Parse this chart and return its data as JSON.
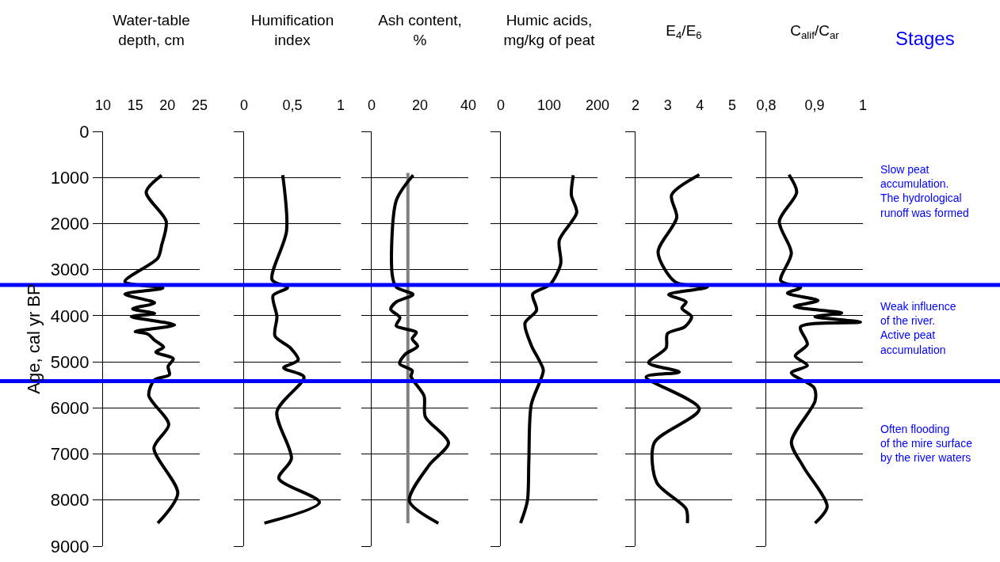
{
  "chart_data": [
    {
      "type": "line",
      "title": "Water-table\ndepth, cm",
      "ylabel": "Age, cal yr BP",
      "xlim": [
        10,
        25
      ],
      "xticks": [
        10,
        15,
        20,
        25
      ],
      "ylim": [
        9000,
        0
      ],
      "yticks": [
        0,
        1000,
        2000,
        3000,
        4000,
        5000,
        6000,
        7000,
        8000,
        9000
      ],
      "grid": "y",
      "marker": "none",
      "series": [
        {
          "color": "#000000",
          "x": [
            19.1,
            16.7,
            19.8,
            19.1,
            18.5,
            13.4,
            19.3,
            13.4,
            18.0,
            14.6,
            18.0,
            14.4,
            21.1,
            15.0,
            17.0,
            18.0,
            19.4,
            18.2,
            20.9,
            20.1,
            20.3,
            18.0,
            17.1,
            20.2,
            17.9,
            21.6,
            18.5
          ],
          "values": [
            950,
            1320,
            1950,
            2470,
            2750,
            3260,
            3400,
            3530,
            3720,
            3850,
            3950,
            4020,
            4200,
            4340,
            4400,
            4530,
            4680,
            4790,
            4930,
            5100,
            5280,
            5390,
            5730,
            6360,
            6870,
            7850,
            8500
          ]
        }
      ],
      "ref_lines": [
        {
          "axis": "y",
          "value": 3330,
          "color": "#0000ff"
        },
        {
          "axis": "y",
          "value": 5420,
          "color": "#0000ff"
        }
      ]
    },
    {
      "type": "line",
      "title": "Humification\nindex",
      "xlim": [
        0,
        1
      ],
      "xticks": [
        0,
        {
          "value": 0.5,
          "label": "0,5"
        },
        1
      ],
      "ylim": [
        9000,
        0
      ],
      "yticks": [
        0,
        1000,
        2000,
        3000,
        4000,
        5000,
        6000,
        7000,
        8000,
        9000
      ],
      "tick_labels": "x",
      "grid": "y",
      "marker": "none",
      "series": [
        {
          "color": "#000000",
          "x": [
            0.4,
            0.44,
            0.29,
            0.45,
            0.3,
            0.34,
            0.32,
            0.48,
            0.56,
            0.41,
            0.62,
            0.34,
            0.49,
            0.36,
            0.78,
            0.21
          ],
          "values": [
            950,
            2160,
            3220,
            3390,
            3560,
            4020,
            4440,
            4700,
            4960,
            5130,
            5330,
            6080,
            7100,
            7530,
            8050,
            8500
          ]
        }
      ],
      "ref_lines": [
        {
          "axis": "y",
          "value": 3330,
          "color": "#0000ff"
        },
        {
          "axis": "y",
          "value": 5420,
          "color": "#0000ff"
        }
      ]
    },
    {
      "type": "line",
      "title": "Ash content,\n%",
      "xlim": [
        0,
        40
      ],
      "xticks": [
        0,
        20,
        40
      ],
      "ylim": [
        9000,
        0
      ],
      "yticks": [
        0,
        1000,
        2000,
        3000,
        4000,
        5000,
        6000,
        7000,
        8000,
        9000
      ],
      "tick_labels": "x",
      "grid": "y",
      "marker": "none",
      "series": [
        {
          "color": "#808080",
          "x": [
            15,
            15
          ],
          "values": [
            900,
            8500
          ]
        },
        {
          "color": "#000000",
          "x": [
            17.2,
            10.2,
            8.5,
            10.2,
            17.1,
            10.2,
            7.9,
            11.7,
            10.2,
            18.5,
            16.8,
            19.0,
            13.8,
            11.6,
            16.8,
            16.3,
            21.7,
            22.2,
            31.8,
            23.8,
            15.6,
            27.6
          ],
          "values": [
            950,
            1500,
            3100,
            3380,
            3540,
            3700,
            3860,
            4040,
            4220,
            4360,
            4500,
            4660,
            4840,
            5040,
            5190,
            5320,
            5740,
            6190,
            6760,
            7240,
            8020,
            8500
          ]
        }
      ],
      "ref_lines": [
        {
          "axis": "y",
          "value": 3330,
          "color": "#0000ff"
        },
        {
          "axis": "y",
          "value": 5420,
          "color": "#0000ff"
        }
      ]
    },
    {
      "type": "line",
      "title": "Humic acids,\nmg/kg of peat",
      "xlim": [
        0,
        200
      ],
      "xticks": [
        0,
        100,
        200
      ],
      "ylim": [
        9000,
        0
      ],
      "yticks": [
        0,
        1000,
        2000,
        3000,
        4000,
        5000,
        6000,
        7000,
        8000,
        9000
      ],
      "tick_labels": "x",
      "grid": "y",
      "marker": "none",
      "series": [
        {
          "color": "#000000",
          "x": [
            150,
            146,
            157,
            121,
            124,
            102,
            66,
            74,
            50,
            63,
            80,
            88,
            63,
            58,
            55,
            41
          ],
          "values": [
            950,
            1380,
            1760,
            2360,
            2870,
            3320,
            3530,
            3880,
            4160,
            4640,
            4980,
            5190,
            5930,
            7160,
            8020,
            8500
          ]
        }
      ],
      "ref_lines": [
        {
          "axis": "y",
          "value": 3330,
          "color": "#0000ff"
        },
        {
          "axis": "y",
          "value": 5420,
          "color": "#0000ff"
        }
      ]
    },
    {
      "type": "line",
      "title": "E$_{4}$/E$_{6}$",
      "xlim": [
        2,
        5
      ],
      "xticks": [
        2,
        3,
        4,
        5
      ],
      "ylim": [
        9000,
        0
      ],
      "yticks": [
        0,
        1000,
        2000,
        3000,
        4000,
        5000,
        6000,
        7000,
        8000,
        9000
      ],
      "tick_labels": "x",
      "grid": "y",
      "marker": "none",
      "series": [
        {
          "color": "#000000",
          "x": [
            3.98,
            3.12,
            3.28,
            2.7,
            3.24,
            4.23,
            3.03,
            3.57,
            3.44,
            3.74,
            3.53,
            2.99,
            2.95,
            2.41,
            3.36,
            2.33,
            3.98,
            2.58,
            2.66,
            3.57,
            3.61
          ],
          "values": [
            940,
            1380,
            1870,
            2620,
            3270,
            3380,
            3540,
            3700,
            3840,
            4020,
            4240,
            4390,
            4700,
            5020,
            5220,
            5330,
            6020,
            6760,
            7620,
            8190,
            8500
          ]
        }
      ],
      "ref_lines": [
        {
          "axis": "y",
          "value": 3330,
          "color": "#0000ff"
        },
        {
          "axis": "y",
          "value": 5420,
          "color": "#0000ff"
        }
      ]
    },
    {
      "type": "line",
      "title": "C$_{alif}$/C$_{ar}$",
      "xlim": [
        0.8,
        1
      ],
      "xticks": [
        {
          "value": 0.8,
          "label": "0,8"
        },
        {
          "value": 0.9,
          "label": "0,9"
        },
        1
      ],
      "ylim": [
        9000,
        0
      ],
      "yticks": [
        0,
        1000,
        2000,
        3000,
        4000,
        5000,
        6000,
        7000,
        8000,
        9000
      ],
      "tick_labels": "x",
      "grid": "y",
      "marker": "none",
      "series": [
        {
          "color": "#000000",
          "x": [
            0.847,
            0.863,
            0.827,
            0.852,
            0.83,
            0.871,
            0.844,
            0.907,
            0.858,
            0.956,
            0.901,
            0.995,
            0.871,
            0.885,
            0.86,
            0.885,
            0.852,
            0.899,
            0.901,
            0.852,
            0.877,
            0.926,
            0.901
          ],
          "values": [
            940,
            1320,
            1950,
            2640,
            3240,
            3390,
            3510,
            3670,
            3800,
            3940,
            4020,
            4140,
            4240,
            4620,
            4870,
            5080,
            5240,
            5560,
            5850,
            6740,
            7280,
            8140,
            8500
          ]
        }
      ],
      "ref_lines": [
        {
          "axis": "y",
          "value": 3330,
          "color": "#0000ff"
        },
        {
          "axis": "y",
          "value": 5420,
          "color": "#0000ff"
        }
      ],
      "annotations": [
        "Stages",
        "Slow peat\naccumulation.\nThe hydrological\nrunoff was formed",
        "Weak influence\nof the river.\nActive peat\naccumulation",
        "Often flooding\nof the mire surface\nby the river waters"
      ]
    }
  ]
}
